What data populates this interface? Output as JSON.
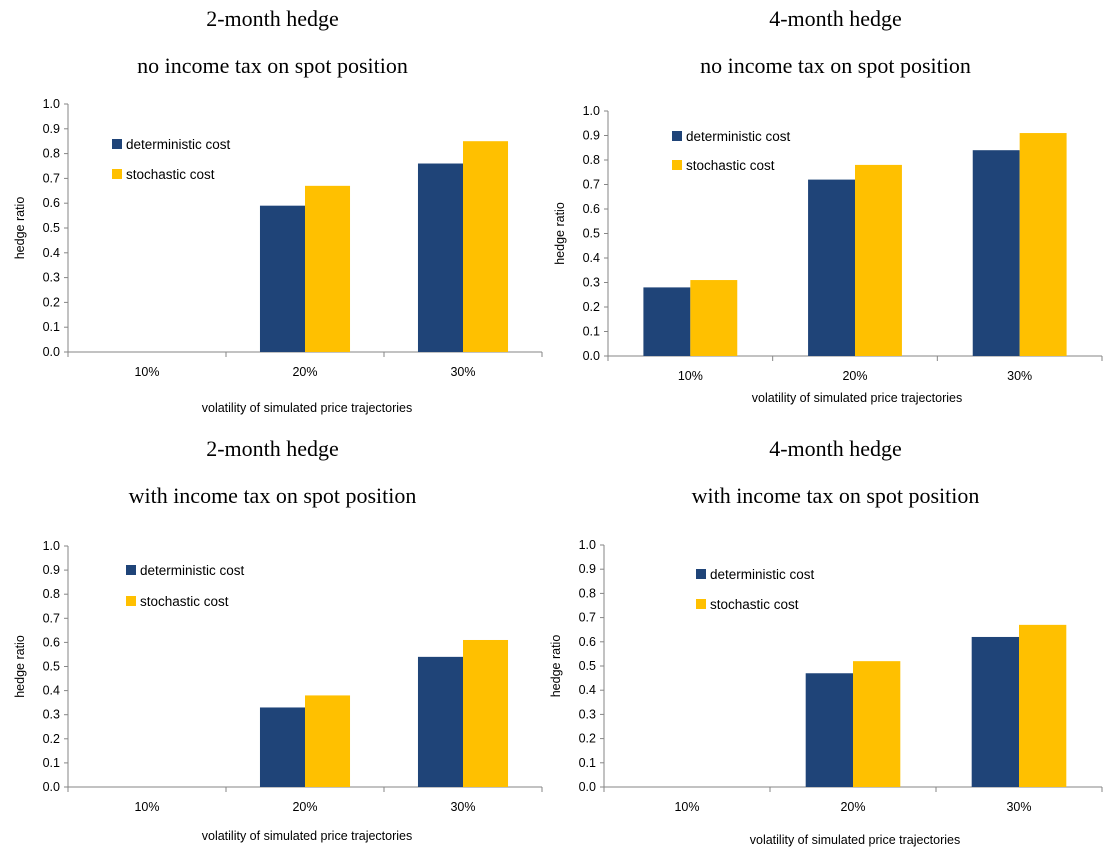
{
  "colors": {
    "deterministic": "#1f4478",
    "stochastic": "#ffc000",
    "axis": "#868686"
  },
  "panels": [
    {
      "title_line1": "2-month hedge",
      "title_line2": "no income tax on spot position"
    },
    {
      "title_line1": "4-month hedge",
      "title_line2": "no income tax on spot position"
    },
    {
      "title_line1": "2-month hedge",
      "title_line2": "with income tax on spot position"
    },
    {
      "title_line1": "4-month hedge",
      "title_line2": "with income tax on spot position"
    }
  ],
  "chart_data": [
    {
      "type": "bar",
      "title": "2-month hedge no income tax on spot position",
      "categories": [
        "10%",
        "20%",
        "30%"
      ],
      "series": [
        {
          "name": "deterministic cost",
          "values": [
            0.0,
            0.59,
            0.76
          ]
        },
        {
          "name": "stochastic cost",
          "values": [
            0.0,
            0.67,
            0.85
          ]
        }
      ],
      "xlabel": "volatility of simulated price trajectories",
      "ylabel": "hedge ratio",
      "ylim": [
        0,
        1
      ],
      "yticks": [
        "0.0",
        "0.1",
        "0.2",
        "0.3",
        "0.4",
        "0.5",
        "0.6",
        "0.7",
        "0.8",
        "0.9",
        "1.0"
      ],
      "legend": "top-left"
    },
    {
      "type": "bar",
      "title": "4-month hedge no income tax on spot position",
      "categories": [
        "10%",
        "20%",
        "30%"
      ],
      "series": [
        {
          "name": "deterministic cost",
          "values": [
            0.28,
            0.72,
            0.84
          ]
        },
        {
          "name": "stochastic cost",
          "values": [
            0.31,
            0.78,
            0.91
          ]
        }
      ],
      "xlabel": "volatility of simulated price trajectories",
      "ylabel": "hedge ratio",
      "ylim": [
        0,
        1
      ],
      "yticks": [
        "0.0",
        "0.1",
        "0.2",
        "0.3",
        "0.4",
        "0.5",
        "0.6",
        "0.7",
        "0.8",
        "0.9",
        "1.0"
      ],
      "legend": "top-left"
    },
    {
      "type": "bar",
      "title": "2-month hedge with income tax on spot position",
      "categories": [
        "10%",
        "20%",
        "30%"
      ],
      "series": [
        {
          "name": "deterministic cost",
          "values": [
            0.0,
            0.33,
            0.54
          ]
        },
        {
          "name": "stochastic cost",
          "values": [
            0.0,
            0.38,
            0.61
          ]
        }
      ],
      "xlabel": "volatility of simulated price trajectories",
      "ylabel": "hedge ratio",
      "ylim": [
        0,
        1
      ],
      "yticks": [
        "0.0",
        "0.1",
        "0.2",
        "0.3",
        "0.4",
        "0.5",
        "0.6",
        "0.7",
        "0.8",
        "0.9",
        "1.0"
      ],
      "legend": "top-left"
    },
    {
      "type": "bar",
      "title": "4-month hedge with income tax on spot position",
      "categories": [
        "10%",
        "20%",
        "30%"
      ],
      "series": [
        {
          "name": "deterministic cost",
          "values": [
            0.0,
            0.47,
            0.62
          ]
        },
        {
          "name": "stochastic cost",
          "values": [
            0.0,
            0.52,
            0.67
          ]
        }
      ],
      "xlabel": "volatility of simulated price trajectories",
      "ylabel": "hedge ratio",
      "ylim": [
        0,
        1
      ],
      "yticks": [
        "0.0",
        "0.1",
        "0.2",
        "0.3",
        "0.4",
        "0.5",
        "0.6",
        "0.7",
        "0.8",
        "0.9",
        "1.0"
      ],
      "legend": "top-left"
    }
  ]
}
